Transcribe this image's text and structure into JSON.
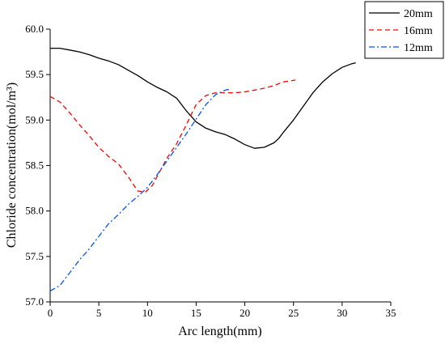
{
  "chart_data": {
    "type": "line",
    "xlabel": "Arc length(mm)",
    "ylabel": "Chloride concentration(mol/m³)",
    "xlim": [
      0,
      35
    ],
    "ylim": [
      57.0,
      60.0
    ],
    "x_ticks": [
      0,
      5,
      10,
      15,
      20,
      25,
      30,
      35
    ],
    "y_ticks": [
      57.0,
      57.5,
      58.0,
      58.5,
      59.0,
      59.5,
      60.0
    ],
    "x_tick_labels": [
      "0",
      "5",
      "10",
      "15",
      "20",
      "25",
      "30",
      "35"
    ],
    "y_tick_labels": [
      "57.0",
      "57.5",
      "58.0",
      "58.5",
      "59.0",
      "59.5",
      "60.0"
    ],
    "grid": false,
    "legend_position": "top-right",
    "series": [
      {
        "name": "20mm",
        "color": "#000000",
        "style": "solid",
        "points": [
          [
            0,
            59.79
          ],
          [
            1,
            59.79
          ],
          [
            2,
            59.77
          ],
          [
            3,
            59.75
          ],
          [
            4,
            59.72
          ],
          [
            5,
            59.68
          ],
          [
            6,
            59.65
          ],
          [
            7,
            59.61
          ],
          [
            8,
            59.55
          ],
          [
            9,
            59.49
          ],
          [
            10,
            59.42
          ],
          [
            11,
            59.36
          ],
          [
            12,
            59.31
          ],
          [
            13,
            59.24
          ],
          [
            14,
            59.1
          ],
          [
            15,
            58.98
          ],
          [
            16,
            58.91
          ],
          [
            17,
            58.87
          ],
          [
            18,
            58.84
          ],
          [
            19,
            58.79
          ],
          [
            20,
            58.73
          ],
          [
            21,
            58.69
          ],
          [
            22,
            58.7
          ],
          [
            23,
            58.75
          ],
          [
            23.5,
            58.8
          ],
          [
            24,
            58.87
          ],
          [
            25,
            59.0
          ],
          [
            26,
            59.15
          ],
          [
            27,
            59.3
          ],
          [
            28,
            59.42
          ],
          [
            29,
            59.51
          ],
          [
            30,
            59.58
          ],
          [
            31,
            59.62
          ],
          [
            31.4,
            59.63
          ]
        ]
      },
      {
        "name": "16mm",
        "color": "#ff0000",
        "style": "dashed",
        "points": [
          [
            0,
            59.26
          ],
          [
            1,
            59.2
          ],
          [
            2,
            59.08
          ],
          [
            3,
            58.95
          ],
          [
            4,
            58.83
          ],
          [
            5,
            58.7
          ],
          [
            6,
            58.6
          ],
          [
            7,
            58.52
          ],
          [
            8,
            58.38
          ],
          [
            9,
            58.22
          ],
          [
            9.8,
            58.21
          ],
          [
            10.5,
            58.28
          ],
          [
            11,
            58.38
          ],
          [
            12,
            58.58
          ],
          [
            13,
            58.74
          ],
          [
            14,
            58.95
          ],
          [
            15,
            59.17
          ],
          [
            16,
            59.27
          ],
          [
            17,
            59.3
          ],
          [
            18,
            59.3
          ],
          [
            19,
            59.3
          ],
          [
            20,
            59.31
          ],
          [
            21,
            59.33
          ],
          [
            22,
            59.35
          ],
          [
            23,
            59.38
          ],
          [
            24,
            59.42
          ],
          [
            25.2,
            59.44
          ]
        ]
      },
      {
        "name": "12mm",
        "color": "#0055ff",
        "style": "dashdot",
        "points": [
          [
            0,
            57.12
          ],
          [
            1,
            57.18
          ],
          [
            2,
            57.32
          ],
          [
            3,
            57.46
          ],
          [
            4,
            57.58
          ],
          [
            5,
            57.72
          ],
          [
            6,
            57.86
          ],
          [
            7,
            57.96
          ],
          [
            8,
            58.07
          ],
          [
            9,
            58.16
          ],
          [
            10,
            58.26
          ],
          [
            11,
            58.4
          ],
          [
            12,
            58.55
          ],
          [
            13,
            58.7
          ],
          [
            14,
            58.85
          ],
          [
            15,
            59.01
          ],
          [
            16,
            59.17
          ],
          [
            17,
            59.28
          ],
          [
            18,
            59.33
          ],
          [
            18.6,
            59.34
          ]
        ]
      }
    ]
  }
}
